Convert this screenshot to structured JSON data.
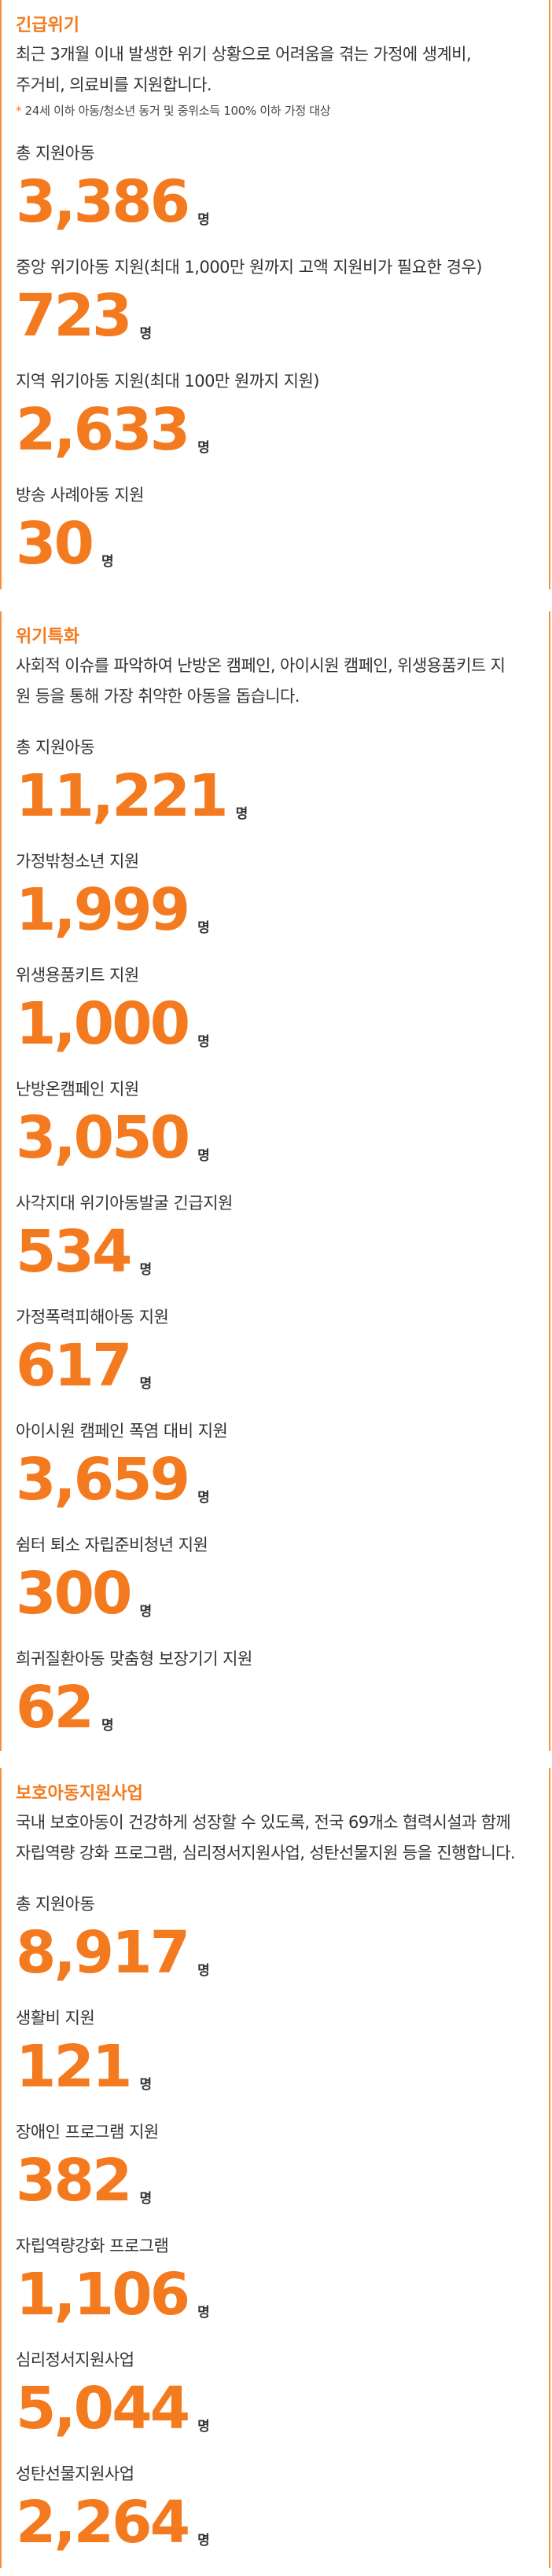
{
  "sections": [
    {
      "title": "긴급위기",
      "description": "최근 3개월 이내 발생한 위기 상황으로 어려움을 겪는 가정에 생계비,\n주거비, 의료비를 지원합니다.",
      "note_star": "*",
      "note": " 24세 이하 아동/청소년 동거 및 중위소득 100% 이하 가정 대상",
      "stats": [
        {
          "label": "총 지원아동",
          "value": "3,386",
          "unit": "명"
        },
        {
          "label": "중앙 위기아동 지원(최대 1,000만 원까지 고액 지원비가 필요한 경우)",
          "value": "723",
          "unit": "명"
        },
        {
          "label": "지역 위기아동 지원(최대 100만 원까지 지원)",
          "value": "2,633",
          "unit": "명"
        },
        {
          "label": "방송 사례아동 지원",
          "value": "30",
          "unit": "명"
        }
      ]
    },
    {
      "title": "위기특화",
      "description": "사회적 이슈를 파악하여 난방온 캠페인, 아이시원 캠페인, 위생용품키트 지\n원 등을 통해 가장 취약한 아동을 돕습니다.",
      "stats": [
        {
          "label": "총 지원아동",
          "value": "11,221",
          "unit": "명"
        },
        {
          "label": "가정밖청소년 지원",
          "value": "1,999",
          "unit": "명"
        },
        {
          "label": "위생용품키트 지원",
          "value": "1,000",
          "unit": "명"
        },
        {
          "label": "난방온캠페인 지원",
          "value": "3,050",
          "unit": "명"
        },
        {
          "label": "사각지대 위기아동발굴 긴급지원",
          "value": "534",
          "unit": "명"
        },
        {
          "label": "가정폭력피해아동 지원",
          "value": "617",
          "unit": "명"
        },
        {
          "label": "아이시원 캠페인 폭염 대비 지원",
          "value": "3,659",
          "unit": "명"
        },
        {
          "label": "쉼터 퇴소 자립준비청년 지원",
          "value": "300",
          "unit": "명"
        },
        {
          "label": "희귀질환아동 맞춤형 보장기기 지원",
          "value": "62",
          "unit": "명"
        }
      ]
    },
    {
      "title": "보호아동지원사업",
      "description": "국내 보호아동이 건강하게 성장할 수 있도록, 전국 69개소 협력시설과 함께\n자립역량 강화 프로그램, 심리정서지원사업, 성탄선물지원 등을 진행합니다.",
      "stats": [
        {
          "label": "총 지원아동",
          "value": "8,917",
          "unit": "명"
        },
        {
          "label": "생활비 지원",
          "value": "121",
          "unit": "명"
        },
        {
          "label": "장애인 프로그램 지원",
          "value": "382",
          "unit": "명"
        },
        {
          "label": "자립역량강화 프로그램",
          "value": "1,106",
          "unit": "명"
        },
        {
          "label": "심리정서지원사업",
          "value": "5,044",
          "unit": "명"
        },
        {
          "label": "성탄선물지원사업",
          "value": "2,264",
          "unit": "명"
        }
      ]
    }
  ]
}
